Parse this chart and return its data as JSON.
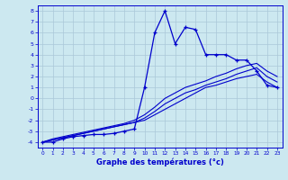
{
  "xlabel": "Graphe des températures (°c)",
  "bg_color": "#cce8f0",
  "grid_color": "#aac8d8",
  "line_color": "#0000cc",
  "xlim": [
    -0.5,
    23.5
  ],
  "ylim": [
    -4.5,
    8.5
  ],
  "xticks": [
    0,
    1,
    2,
    3,
    4,
    5,
    6,
    7,
    8,
    9,
    10,
    11,
    12,
    13,
    14,
    15,
    16,
    17,
    18,
    19,
    20,
    21,
    22,
    23
  ],
  "yticks": [
    -4,
    -3,
    -2,
    -1,
    0,
    1,
    2,
    3,
    4,
    5,
    6,
    7,
    8
  ],
  "hours": [
    0,
    1,
    2,
    3,
    4,
    5,
    6,
    7,
    8,
    9,
    10,
    11,
    12,
    13,
    14,
    15,
    16,
    17,
    18,
    19,
    20,
    21,
    22,
    23
  ],
  "main_curve": [
    -4.0,
    -4.0,
    -3.7,
    -3.5,
    -3.4,
    -3.3,
    -3.3,
    -3.2,
    -3.0,
    -2.8,
    1.0,
    6.0,
    8.0,
    5.0,
    6.5,
    6.3,
    4.0,
    4.0,
    4.0,
    3.5,
    3.5,
    2.5,
    1.2,
    1.0
  ],
  "line_diag1": [
    -4.0,
    -3.8,
    -3.6,
    -3.4,
    -3.2,
    -3.0,
    -2.8,
    -2.6,
    -2.4,
    -2.2,
    -2.0,
    -1.5,
    -1.0,
    -0.5,
    0.0,
    0.5,
    1.0,
    1.2,
    1.5,
    1.8,
    2.0,
    2.2,
    1.5,
    1.0
  ],
  "line_diag2": [
    -4.0,
    -3.8,
    -3.6,
    -3.4,
    -3.2,
    -3.0,
    -2.8,
    -2.6,
    -2.4,
    -2.2,
    -1.8,
    -1.2,
    -0.5,
    0.0,
    0.5,
    0.8,
    1.2,
    1.5,
    1.8,
    2.2,
    2.5,
    2.8,
    2.0,
    1.5
  ],
  "line_diag3": [
    -4.0,
    -3.7,
    -3.5,
    -3.3,
    -3.1,
    -2.9,
    -2.7,
    -2.5,
    -2.3,
    -2.0,
    -1.5,
    -0.8,
    0.0,
    0.5,
    1.0,
    1.3,
    1.6,
    2.0,
    2.3,
    2.7,
    3.0,
    3.2,
    2.5,
    2.0
  ]
}
